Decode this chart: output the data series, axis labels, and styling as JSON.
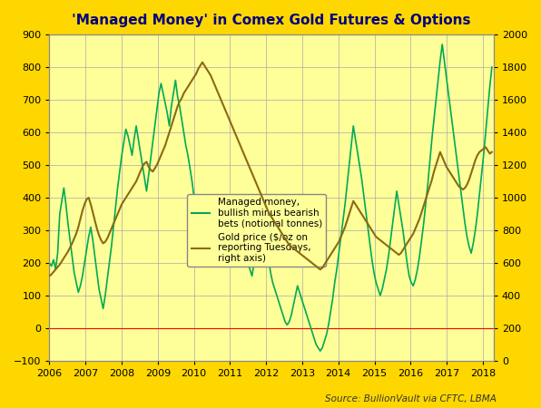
{
  "title": "'Managed Money' in Comex Gold Futures & Options",
  "source_text": "Source: BullionVault via CFTC, LBMA",
  "background_color": "#FFD700",
  "plot_bg_color": "#FFFF99",
  "left_ylim": [
    -100,
    900
  ],
  "right_ylim": [
    0,
    2000
  ],
  "left_yticks": [
    -100,
    0,
    100,
    200,
    300,
    400,
    500,
    600,
    700,
    800,
    900
  ],
  "right_yticks": [
    0,
    200,
    400,
    600,
    800,
    1000,
    1200,
    1400,
    1600,
    1800,
    2000
  ],
  "xticks": [
    2006,
    2007,
    2008,
    2009,
    2010,
    2011,
    2012,
    2013,
    2014,
    2015,
    2016,
    2017,
    2018
  ],
  "xlim": [
    2006,
    2018.3
  ],
  "green_color": "#00AA55",
  "gold_color": "#8B6914",
  "legend_label1": "Managed money,\nbullish minus bearish\nbets (notional tonnes)",
  "legend_label2": "Gold price ($/oz on\nreporting Tuesdays,\nright axis)",
  "managed_money": [
    200,
    190,
    210,
    180,
    230,
    350,
    390,
    430,
    380,
    320,
    270,
    220,
    170,
    140,
    110,
    130,
    160,
    200,
    240,
    280,
    310,
    270,
    220,
    170,
    120,
    90,
    60,
    100,
    150,
    200,
    250,
    310,
    370,
    430,
    480,
    530,
    570,
    610,
    590,
    560,
    530,
    580,
    620,
    580,
    540,
    500,
    460,
    420,
    470,
    520,
    570,
    620,
    670,
    720,
    750,
    720,
    690,
    660,
    620,
    680,
    720,
    760,
    710,
    680,
    640,
    600,
    560,
    530,
    490,
    450,
    400,
    350,
    300,
    260,
    220,
    200,
    230,
    260,
    300,
    340,
    380,
    340,
    300,
    260,
    230,
    210,
    190,
    220,
    260,
    300,
    340,
    380,
    340,
    300,
    260,
    230,
    200,
    180,
    160,
    200,
    240,
    280,
    320,
    360,
    310,
    260,
    210,
    170,
    140,
    120,
    100,
    80,
    60,
    40,
    20,
    10,
    20,
    40,
    70,
    100,
    130,
    110,
    90,
    70,
    50,
    30,
    10,
    -10,
    -30,
    -50,
    -60,
    -70,
    -60,
    -40,
    -20,
    10,
    50,
    90,
    140,
    180,
    230,
    280,
    330,
    380,
    440,
    500,
    560,
    620,
    580,
    540,
    500,
    460,
    410,
    360,
    310,
    260,
    210,
    170,
    140,
    120,
    100,
    120,
    150,
    180,
    220,
    270,
    320,
    370,
    420,
    380,
    340,
    300,
    250,
    200,
    160,
    140,
    130,
    150,
    180,
    220,
    270,
    320,
    380,
    440,
    510,
    580,
    640,
    700,
    760,
    820,
    870,
    820,
    770,
    720,
    670,
    620,
    570,
    520,
    470,
    420,
    370,
    320,
    280,
    250,
    230,
    260,
    300,
    350,
    410,
    470,
    530,
    600,
    670,
    740,
    800
  ],
  "gold_price": [
    520,
    530,
    545,
    560,
    575,
    590,
    610,
    630,
    650,
    670,
    695,
    720,
    750,
    780,
    820,
    870,
    920,
    960,
    990,
    1000,
    960,
    910,
    860,
    810,
    770,
    740,
    720,
    730,
    750,
    780,
    810,
    840,
    870,
    900,
    930,
    960,
    980,
    1000,
    1020,
    1040,
    1060,
    1080,
    1100,
    1130,
    1160,
    1190,
    1210,
    1220,
    1190,
    1170,
    1160,
    1180,
    1200,
    1230,
    1260,
    1290,
    1320,
    1360,
    1400,
    1440,
    1480,
    1520,
    1560,
    1590,
    1610,
    1640,
    1660,
    1680,
    1700,
    1720,
    1740,
    1760,
    1790,
    1810,
    1830,
    1810,
    1790,
    1770,
    1750,
    1720,
    1690,
    1660,
    1630,
    1600,
    1570,
    1540,
    1510,
    1480,
    1450,
    1420,
    1390,
    1360,
    1330,
    1300,
    1270,
    1240,
    1210,
    1180,
    1150,
    1120,
    1090,
    1060,
    1030,
    1000,
    970,
    940,
    910,
    890,
    870,
    850,
    830,
    810,
    790,
    770,
    750,
    730,
    710,
    700,
    690,
    680,
    670,
    660,
    650,
    640,
    630,
    620,
    610,
    600,
    590,
    580,
    570,
    560,
    570,
    590,
    610,
    630,
    650,
    670,
    690,
    710,
    730,
    760,
    790,
    820,
    860,
    900,
    940,
    980,
    960,
    940,
    920,
    900,
    880,
    860,
    840,
    820,
    800,
    780,
    760,
    750,
    740,
    730,
    720,
    710,
    700,
    690,
    680,
    670,
    660,
    650,
    660,
    680,
    700,
    720,
    740,
    760,
    780,
    810,
    840,
    870,
    910,
    950,
    990,
    1030,
    1070,
    1110,
    1160,
    1200,
    1240,
    1280,
    1250,
    1220,
    1190,
    1170,
    1150,
    1130,
    1110,
    1090,
    1070,
    1060,
    1050,
    1060,
    1080,
    1110,
    1150,
    1190,
    1230,
    1260,
    1280,
    1290,
    1300,
    1310,
    1290,
    1270,
    1280
  ]
}
